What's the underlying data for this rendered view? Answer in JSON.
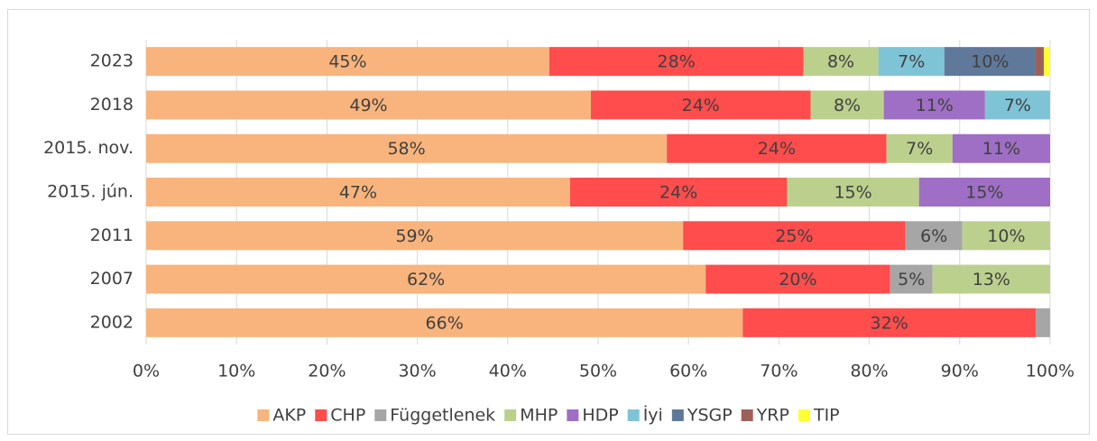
{
  "chart_data": {
    "type": "stacked_bar_horizontal",
    "categories": [
      "2023",
      "2018",
      "2015. nov.",
      "2015. jún.",
      "2011",
      "2007",
      "2002"
    ],
    "series": [
      {
        "name": "AKP",
        "color": "#f8b47c",
        "values": [
          44.6,
          49.2,
          57.6,
          46.9,
          59.4,
          61.9,
          66.0
        ],
        "value_labels": [
          "45%",
          "49%",
          "58%",
          "47%",
          "59%",
          "62%",
          "66%"
        ]
      },
      {
        "name": "CHP",
        "color": "#ff4c4c",
        "values": [
          28.1,
          24.3,
          24.3,
          24.0,
          24.6,
          20.4,
          32.4
        ],
        "value_labels": [
          "28%",
          "24%",
          "24%",
          "24%",
          "25%",
          "20%",
          "32%"
        ]
      },
      {
        "name": "Függetlenek",
        "color": "#a6a6a6",
        "values": [
          null,
          null,
          null,
          null,
          6.3,
          4.7,
          1.6
        ],
        "value_labels": [
          null,
          null,
          null,
          null,
          "6%",
          "5%",
          null
        ]
      },
      {
        "name": "MHP",
        "color": "#bcd08e",
        "values": [
          8.3,
          8.1,
          7.3,
          14.6,
          9.7,
          13.0,
          null
        ],
        "value_labels": [
          "8%",
          "8%",
          "7%",
          "15%",
          "10%",
          "13%",
          null
        ]
      },
      {
        "name": "HDP",
        "color": "#9e6fc4",
        "values": [
          null,
          11.2,
          10.8,
          14.5,
          null,
          null,
          null
        ],
        "value_labels": [
          null,
          "11%",
          "11%",
          "15%",
          null,
          null,
          null
        ]
      },
      {
        "name": "İyi",
        "color": "#7ec4d6",
        "values": [
          7.3,
          7.2,
          null,
          null,
          null,
          null,
          null
        ],
        "value_labels": [
          "7%",
          "7%",
          null,
          null,
          null,
          null,
          null
        ]
      },
      {
        "name": "YSGP",
        "color": "#60799a",
        "values": [
          10.1,
          null,
          null,
          null,
          null,
          null,
          null
        ],
        "value_labels": [
          "10%",
          null,
          null,
          null,
          null,
          null,
          null
        ]
      },
      {
        "name": "YRP",
        "color": "#a0605a",
        "values": [
          0.9,
          null,
          null,
          null,
          null,
          null,
          null
        ],
        "value_labels": [
          null,
          null,
          null,
          null,
          null,
          null,
          null
        ]
      },
      {
        "name": "TIP",
        "color": "#ffff33",
        "values": [
          0.7,
          null,
          null,
          null,
          null,
          null,
          null
        ],
        "value_labels": [
          null,
          null,
          null,
          null,
          null,
          null,
          null
        ]
      }
    ],
    "xlim": [
      0,
      100
    ],
    "xticks": [
      {
        "value": 0,
        "label": "0%"
      },
      {
        "value": 10,
        "label": "10%"
      },
      {
        "value": 20,
        "label": "20%"
      },
      {
        "value": 30,
        "label": "30%"
      },
      {
        "value": 40,
        "label": "40%"
      },
      {
        "value": 50,
        "label": "50%"
      },
      {
        "value": 60,
        "label": "60%"
      },
      {
        "value": 70,
        "label": "70%"
      },
      {
        "value": 80,
        "label": "80%"
      },
      {
        "value": 90,
        "label": "90%"
      },
      {
        "value": 100,
        "label": "100%"
      }
    ],
    "grid": true,
    "legend": "bottom"
  }
}
